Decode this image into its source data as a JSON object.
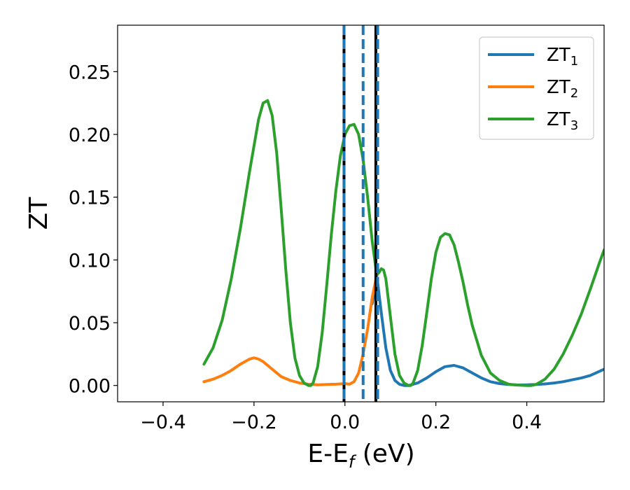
{
  "chart_data": {
    "type": "line",
    "xlabel_main": "E-E",
    "xlabel_sub": "f",
    "xlabel_unit": " (eV)",
    "ylabel": "ZT",
    "xlim": [
      -0.5,
      0.57
    ],
    "ylim": [
      -0.013,
      0.287
    ],
    "xticks": [
      -0.4,
      -0.2,
      0.0,
      0.2,
      0.4
    ],
    "xtick_labels": [
      "−0.4",
      "−0.2",
      "0.0",
      "0.2",
      "0.4"
    ],
    "yticks": [
      0.0,
      0.05,
      0.1,
      0.15,
      0.2,
      0.25
    ],
    "ytick_labels": [
      "0.00",
      "0.05",
      "0.10",
      "0.15",
      "0.20",
      "0.25"
    ],
    "grid": false,
    "legend_placement": "top-right",
    "vlines_solid": [
      -0.002,
      0.068
    ],
    "vlines_dashed": [
      -0.002,
      0.04,
      0.072
    ],
    "vline_solid_color": "#000000",
    "vline_dashed_color": "#1f77b4",
    "series": [
      {
        "name_main": "ZT",
        "name_sub": "1",
        "color": "#1f77b4",
        "x": [
          0.06,
          0.07,
          0.08,
          0.09,
          0.1,
          0.11,
          0.12,
          0.13,
          0.14,
          0.15,
          0.16,
          0.18,
          0.2,
          0.22,
          0.24,
          0.26,
          0.28,
          0.3,
          0.32,
          0.34,
          0.36,
          0.38,
          0.4,
          0.42,
          0.44,
          0.46,
          0.48,
          0.5,
          0.52,
          0.54,
          0.57
        ],
        "y": [
          0.065,
          0.088,
          0.058,
          0.03,
          0.012,
          0.004,
          0.001,
          0.0,
          0.0,
          0.001,
          0.002,
          0.006,
          0.011,
          0.015,
          0.016,
          0.014,
          0.01,
          0.006,
          0.003,
          0.0015,
          0.0008,
          0.0004,
          0.0005,
          0.0008,
          0.0012,
          0.002,
          0.003,
          0.0045,
          0.006,
          0.008,
          0.013
        ]
      },
      {
        "name_main": "ZT",
        "name_sub": "2",
        "color": "#ff7f0e",
        "x": [
          -0.31,
          -0.29,
          -0.27,
          -0.25,
          -0.23,
          -0.21,
          -0.2,
          -0.19,
          -0.18,
          -0.16,
          -0.14,
          -0.12,
          -0.1,
          -0.08,
          -0.06,
          -0.04,
          -0.02,
          0.0,
          0.01,
          0.02,
          0.03,
          0.04,
          0.05,
          0.06,
          0.07
        ],
        "y": [
          0.003,
          0.005,
          0.008,
          0.012,
          0.017,
          0.021,
          0.022,
          0.021,
          0.019,
          0.013,
          0.007,
          0.004,
          0.002,
          0.001,
          0.0005,
          0.0008,
          0.001,
          0.0015,
          0.001,
          0.003,
          0.01,
          0.025,
          0.045,
          0.07,
          0.088
        ]
      },
      {
        "name_main": "ZT",
        "name_sub": "3",
        "color": "#2ca02c",
        "x": [
          -0.31,
          -0.29,
          -0.27,
          -0.25,
          -0.23,
          -0.21,
          -0.19,
          -0.18,
          -0.17,
          -0.16,
          -0.15,
          -0.14,
          -0.13,
          -0.12,
          -0.11,
          -0.1,
          -0.09,
          -0.08,
          -0.075,
          -0.07,
          -0.06,
          -0.05,
          -0.04,
          -0.03,
          -0.02,
          -0.01,
          0.0,
          0.01,
          0.02,
          0.03,
          0.04,
          0.05,
          0.06,
          0.07,
          0.075,
          0.08,
          0.085,
          0.09,
          0.1,
          0.11,
          0.12,
          0.13,
          0.14,
          0.145,
          0.15,
          0.16,
          0.17,
          0.18,
          0.19,
          0.2,
          0.21,
          0.22,
          0.23,
          0.24,
          0.25,
          0.26,
          0.27,
          0.28,
          0.3,
          0.32,
          0.34,
          0.36,
          0.38,
          0.4,
          0.41,
          0.42,
          0.44,
          0.46,
          0.48,
          0.5,
          0.52,
          0.54,
          0.56,
          0.57
        ],
        "y": [
          0.017,
          0.03,
          0.052,
          0.085,
          0.125,
          0.17,
          0.212,
          0.225,
          0.227,
          0.215,
          0.185,
          0.14,
          0.092,
          0.05,
          0.022,
          0.008,
          0.002,
          0.0,
          0.0,
          0.002,
          0.015,
          0.042,
          0.08,
          0.12,
          0.155,
          0.183,
          0.2,
          0.207,
          0.208,
          0.2,
          0.18,
          0.15,
          0.115,
          0.088,
          0.09,
          0.093,
          0.092,
          0.085,
          0.055,
          0.025,
          0.008,
          0.002,
          0.0,
          0.0,
          0.002,
          0.012,
          0.032,
          0.058,
          0.085,
          0.106,
          0.118,
          0.121,
          0.12,
          0.112,
          0.098,
          0.082,
          0.064,
          0.048,
          0.024,
          0.01,
          0.004,
          0.001,
          0.0003,
          0.0,
          0.0,
          0.0008,
          0.005,
          0.013,
          0.025,
          0.04,
          0.057,
          0.077,
          0.098,
          0.108
        ]
      }
    ]
  }
}
